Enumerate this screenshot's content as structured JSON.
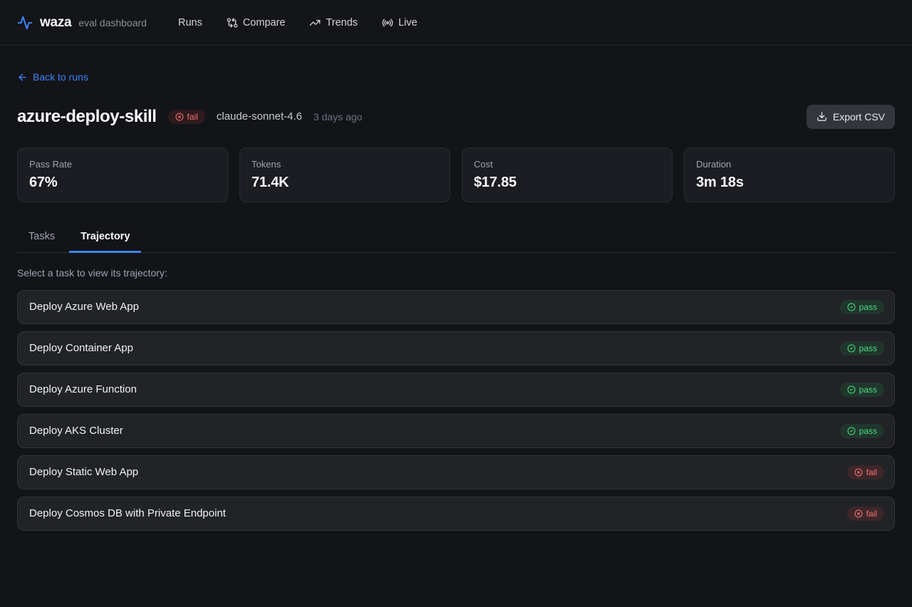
{
  "navbar": {
    "brand": "waza",
    "subtitle": "eval dashboard",
    "items": [
      {
        "label": "Runs",
        "icon": "none"
      },
      {
        "label": "Compare",
        "icon": "git-compare-icon"
      },
      {
        "label": "Trends",
        "icon": "trending-up-icon"
      },
      {
        "label": "Live",
        "icon": "radio-icon"
      }
    ]
  },
  "header": {
    "back_link": "Back to runs",
    "title": "azure-deploy-skill",
    "status": "fail",
    "model": "claude-sonnet-4.6",
    "timestamp": "3 days ago",
    "export_button": "Export CSV"
  },
  "stats": [
    {
      "label": "Pass Rate",
      "value": "67%"
    },
    {
      "label": "Tokens",
      "value": "71.4K"
    },
    {
      "label": "Cost",
      "value": "$17.85"
    },
    {
      "label": "Duration",
      "value": "3m 18s"
    }
  ],
  "tabs": [
    {
      "label": "Tasks",
      "active": false
    },
    {
      "label": "Trajectory",
      "active": true
    }
  ],
  "trajectory": {
    "prompt": "Select a task to view its trajectory:",
    "tasks": [
      {
        "name": "Deploy Azure Web App",
        "status": "pass"
      },
      {
        "name": "Deploy Container App",
        "status": "pass"
      },
      {
        "name": "Deploy Azure Function",
        "status": "pass"
      },
      {
        "name": "Deploy AKS Cluster",
        "status": "pass"
      },
      {
        "name": "Deploy Static Web App",
        "status": "fail"
      },
      {
        "name": "Deploy Cosmos DB with Private Endpoint",
        "status": "fail"
      }
    ]
  },
  "colors": {
    "accent_blue": "#3b82f6",
    "pass_green": "#4ade80",
    "fail_red": "#f87171"
  }
}
